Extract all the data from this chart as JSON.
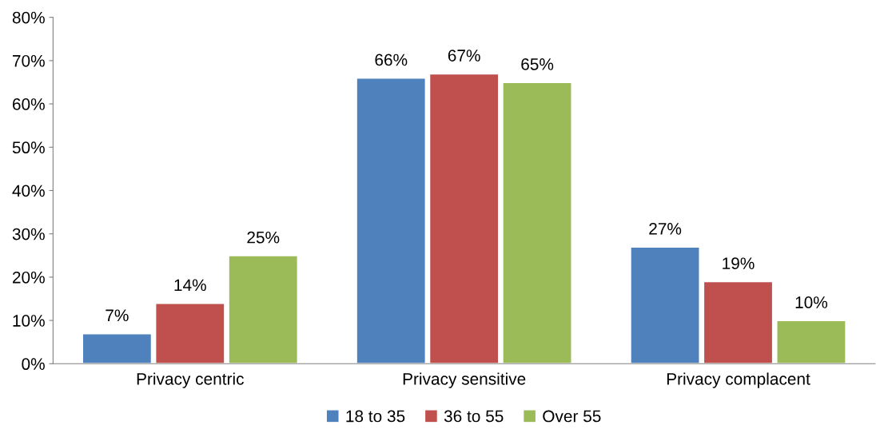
{
  "chart_data": {
    "type": "bar",
    "categories": [
      "Privacy centric",
      "Privacy sensitive",
      "Privacy complacent"
    ],
    "series": [
      {
        "name": "18 to 35",
        "color": "#4f81bd",
        "values": [
          7,
          66,
          27
        ],
        "value_labels": [
          "7%",
          "66%",
          "27%"
        ]
      },
      {
        "name": "36 to 55",
        "color": "#c0504d",
        "values": [
          14,
          67,
          19
        ],
        "value_labels": [
          "14%",
          "67%",
          "19%"
        ]
      },
      {
        "name": "Over 55",
        "color": "#9bbb59",
        "values": [
          25,
          65,
          10
        ],
        "value_labels": [
          "25%",
          "65%",
          "10%"
        ]
      }
    ],
    "ylim": [
      0,
      80
    ],
    "yticks": [
      {
        "value": 0,
        "label": "0%"
      },
      {
        "value": 10,
        "label": "10%"
      },
      {
        "value": 20,
        "label": "20%"
      },
      {
        "value": 30,
        "label": "30%"
      },
      {
        "value": 40,
        "label": "40%"
      },
      {
        "value": 50,
        "label": "50%"
      },
      {
        "value": 60,
        "label": "60%"
      },
      {
        "value": 70,
        "label": "70%"
      },
      {
        "value": 80,
        "label": "80%"
      }
    ],
    "grid": false,
    "legend": "bottom"
  }
}
